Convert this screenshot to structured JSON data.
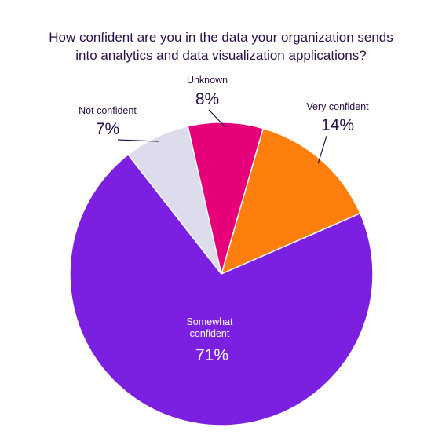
{
  "chart_data": {
    "type": "pie",
    "title": [
      "How confident are you in the data your organization sends",
      "into analytics and data visualization applications?"
    ],
    "slices": [
      {
        "name": "Very confident",
        "value": 14,
        "label": "14%",
        "color": "#ff7f0e"
      },
      {
        "name": "Somewhat confident",
        "value": 71,
        "label": "71%",
        "color": "#7b1fe0",
        "label_lines": [
          "Somewhat",
          "confident"
        ]
      },
      {
        "name": "Not confident",
        "value": 7,
        "label": "7%",
        "color": "#dcdcec"
      },
      {
        "name": "Unknown",
        "value": 8,
        "label": "8%",
        "color": "#e6007a"
      }
    ]
  }
}
